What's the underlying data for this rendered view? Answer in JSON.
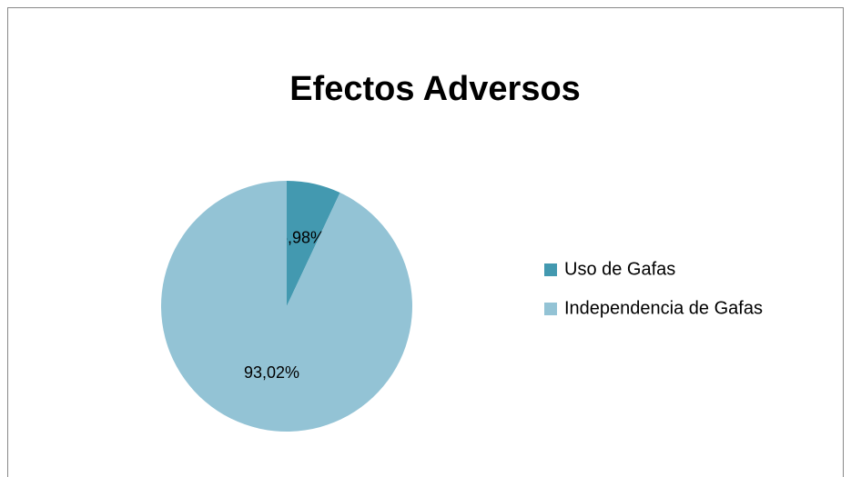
{
  "chart_data": {
    "type": "pie",
    "title": "Efectos Adversos",
    "categories": [
      "Uso de Gafas",
      "Independencia de Gafas"
    ],
    "values": [
      6.98,
      93.02
    ],
    "value_labels": [
      "6,98%",
      "93,02%"
    ],
    "colors": [
      "#4399b0",
      "#93c3d5"
    ],
    "legend": "right"
  }
}
